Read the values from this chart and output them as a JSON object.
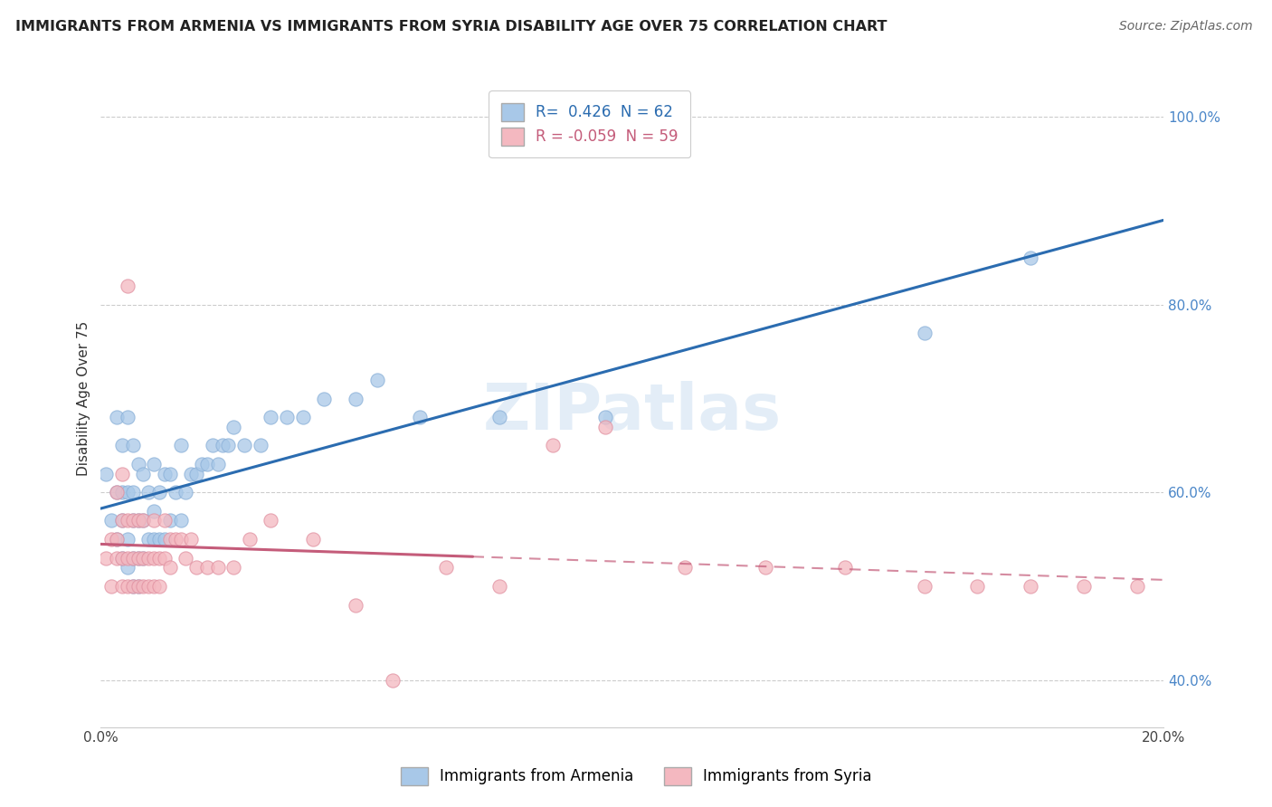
{
  "title": "IMMIGRANTS FROM ARMENIA VS IMMIGRANTS FROM SYRIA DISABILITY AGE OVER 75 CORRELATION CHART",
  "source": "Source: ZipAtlas.com",
  "ylabel": "Disability Age Over 75",
  "xlim": [
    0.0,
    0.2
  ],
  "ylim": [
    0.35,
    1.05
  ],
  "x_ticks": [
    0.0,
    0.05,
    0.1,
    0.15,
    0.2
  ],
  "x_tick_labels": [
    "0.0%",
    "",
    "",
    "",
    "20.0%"
  ],
  "y_ticks": [
    0.4,
    0.6,
    0.8,
    1.0
  ],
  "y_tick_labels": [
    "40.0%",
    "60.0%",
    "80.0%",
    "100.0%"
  ],
  "armenia_color": "#a8c8e8",
  "syria_color": "#f4b8c0",
  "armenia_line_color": "#2b6cb0",
  "syria_line_color": "#c45c7a",
  "background_color": "#ffffff",
  "grid_color": "#cccccc",
  "watermark": "ZIPatlas",
  "armenia_R": 0.426,
  "syria_R": -0.059,
  "armenia_N": 62,
  "syria_N": 59,
  "armenia_scatter_x": [
    0.001,
    0.002,
    0.003,
    0.003,
    0.003,
    0.004,
    0.004,
    0.004,
    0.004,
    0.005,
    0.005,
    0.005,
    0.005,
    0.006,
    0.006,
    0.006,
    0.006,
    0.006,
    0.007,
    0.007,
    0.007,
    0.007,
    0.008,
    0.008,
    0.008,
    0.009,
    0.009,
    0.01,
    0.01,
    0.01,
    0.011,
    0.011,
    0.012,
    0.012,
    0.013,
    0.013,
    0.014,
    0.015,
    0.015,
    0.016,
    0.017,
    0.018,
    0.019,
    0.02,
    0.021,
    0.022,
    0.023,
    0.024,
    0.025,
    0.027,
    0.03,
    0.032,
    0.035,
    0.038,
    0.042,
    0.048,
    0.052,
    0.06,
    0.075,
    0.095,
    0.155,
    0.175
  ],
  "armenia_scatter_y": [
    0.62,
    0.57,
    0.55,
    0.6,
    0.68,
    0.53,
    0.57,
    0.6,
    0.65,
    0.52,
    0.55,
    0.6,
    0.68,
    0.5,
    0.53,
    0.57,
    0.6,
    0.65,
    0.5,
    0.53,
    0.57,
    0.63,
    0.53,
    0.57,
    0.62,
    0.55,
    0.6,
    0.55,
    0.58,
    0.63,
    0.55,
    0.6,
    0.55,
    0.62,
    0.57,
    0.62,
    0.6,
    0.57,
    0.65,
    0.6,
    0.62,
    0.62,
    0.63,
    0.63,
    0.65,
    0.63,
    0.65,
    0.65,
    0.67,
    0.65,
    0.65,
    0.68,
    0.68,
    0.68,
    0.7,
    0.7,
    0.72,
    0.68,
    0.68,
    0.68,
    0.77,
    0.85
  ],
  "syria_scatter_x": [
    0.001,
    0.002,
    0.002,
    0.003,
    0.003,
    0.003,
    0.004,
    0.004,
    0.004,
    0.004,
    0.005,
    0.005,
    0.005,
    0.005,
    0.006,
    0.006,
    0.006,
    0.007,
    0.007,
    0.007,
    0.008,
    0.008,
    0.008,
    0.009,
    0.009,
    0.01,
    0.01,
    0.01,
    0.011,
    0.011,
    0.012,
    0.012,
    0.013,
    0.013,
    0.014,
    0.015,
    0.016,
    0.017,
    0.018,
    0.02,
    0.022,
    0.025,
    0.028,
    0.032,
    0.04,
    0.048,
    0.055,
    0.065,
    0.075,
    0.085,
    0.095,
    0.11,
    0.125,
    0.14,
    0.155,
    0.165,
    0.175,
    0.185,
    0.195
  ],
  "syria_scatter_y": [
    0.53,
    0.55,
    0.5,
    0.53,
    0.55,
    0.6,
    0.5,
    0.53,
    0.57,
    0.62,
    0.5,
    0.53,
    0.57,
    0.82,
    0.5,
    0.53,
    0.57,
    0.5,
    0.53,
    0.57,
    0.5,
    0.53,
    0.57,
    0.5,
    0.53,
    0.5,
    0.53,
    0.57,
    0.5,
    0.53,
    0.53,
    0.57,
    0.52,
    0.55,
    0.55,
    0.55,
    0.53,
    0.55,
    0.52,
    0.52,
    0.52,
    0.52,
    0.55,
    0.57,
    0.55,
    0.48,
    0.4,
    0.52,
    0.5,
    0.65,
    0.67,
    0.52,
    0.52,
    0.52,
    0.5,
    0.5,
    0.5,
    0.5,
    0.5
  ],
  "syria_data_extent": 0.07
}
